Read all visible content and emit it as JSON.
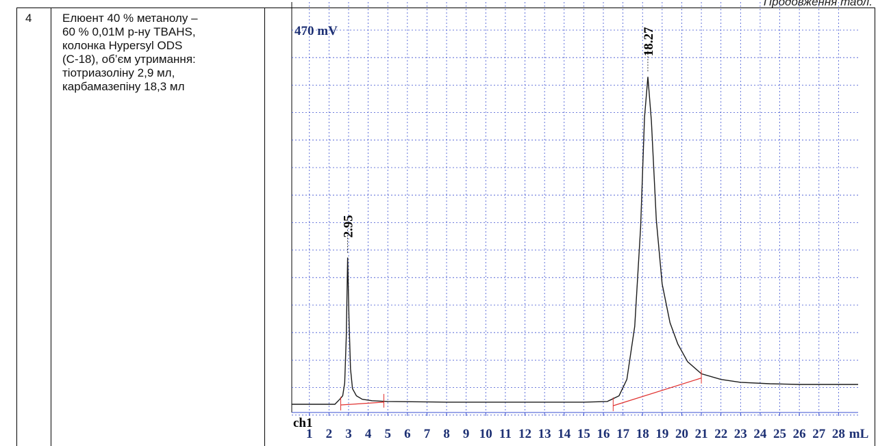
{
  "continuation": "Продовження табл.",
  "row": {
    "number": "4",
    "description_lines": [
      "Елюент 40 % метанолу –",
      "60 % 0,01М р-ну TBAHS,",
      "колонка Hypersyl ODS",
      "(С-18), об’єм утримання:",
      "тіотриазоліну 2,9 мл,",
      "карбамазепіну 18,3 мл"
    ]
  },
  "colors": {
    "trace": "#1a1a1a",
    "grid": "#3a4fd0",
    "baseline": "#e0302e",
    "label": "#1c2f73"
  },
  "chart_data": {
    "type": "line",
    "title": "",
    "ylabel": "470 mV",
    "channel": "ch1",
    "xlabel": "mL",
    "x_ticks": [
      "1",
      "2",
      "3",
      "4",
      "5",
      "6",
      "7",
      "8",
      "9",
      "10",
      "11",
      "12",
      "13",
      "14",
      "15",
      "16",
      "17",
      "18",
      "19",
      "20",
      "21",
      "22",
      "23",
      "24",
      "25",
      "26",
      "27",
      "28"
    ],
    "xlim": [
      0.1,
      29.0
    ],
    "ylim": [
      0,
      470
    ],
    "grid": true,
    "peaks": [
      {
        "label": "2.95",
        "x": 2.95,
        "height": 206
      },
      {
        "label": "18.27",
        "x": 18.27,
        "height": 462
      }
    ],
    "series": [
      {
        "x": [
          0.1,
          1.5,
          2.3,
          2.55,
          2.7,
          2.8,
          2.88,
          2.95,
          3.02,
          3.1,
          3.2,
          3.4,
          3.7,
          4.2,
          5,
          8,
          12,
          15,
          16.2,
          16.8,
          17.2,
          17.6,
          17.9,
          18.1,
          18.27,
          18.45,
          18.7,
          19.0,
          19.4,
          19.8,
          20.3,
          21.0,
          22.0,
          23.0,
          24.5,
          26,
          29.0
        ],
        "y": [
          0,
          0,
          0,
          7,
          12,
          30,
          95,
          207,
          120,
          50,
          22,
          12,
          7,
          5,
          4,
          3,
          3,
          3,
          4,
          12,
          35,
          110,
          250,
          405,
          462,
          400,
          260,
          170,
          115,
          85,
          60,
          43,
          35,
          31,
          29,
          28,
          28
        ]
      }
    ],
    "integration_baseline": [
      {
        "x": [
          2.6,
          4.8
        ],
        "y": [
          -1,
          3
        ]
      },
      {
        "x": [
          16.5,
          21.0
        ],
        "y": [
          -2,
          37
        ]
      }
    ],
    "baseline_markers": [
      2.6,
      4.8,
      16.5,
      21.0
    ]
  }
}
